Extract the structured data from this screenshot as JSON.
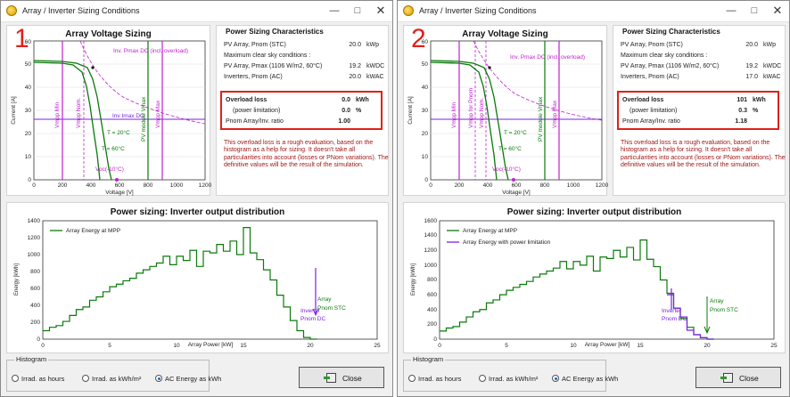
{
  "windows": [
    {
      "title": "Array / Inverter Sizing Conditions",
      "number": "1",
      "voltage_chart": {
        "title": "Array Voltage Sizing",
        "ylabel": "Current [A]",
        "xlabel": "Voltage [V]",
        "yticks": [
          "0",
          "10",
          "20",
          "30",
          "40",
          "50",
          "60"
        ],
        "xticks": [
          "0",
          "200",
          "400",
          "600",
          "800",
          "1000",
          "1200"
        ],
        "labels": {
          "pmax": "Inv. Pmax DC (incl. overload)",
          "imax": "Inv Imax DC",
          "t20": "T = 20°C",
          "t60": "T = 60°C",
          "voc": "Voc(-10°C)",
          "vmpp_min": "Vmpp Min",
          "vmpp_nom": "Vmpp Nom.",
          "module_vmax": "PV module Vmax",
          "vmpp_max": "Vmpp Max"
        }
      },
      "characteristics": {
        "title": "Power Sizing Characteristics",
        "rows": [
          {
            "label": "PV Array, Pnom (STC)",
            "value": "20.0",
            "unit": "kWp"
          },
          {
            "label": "Maximum clear sky conditions :",
            "value": "",
            "unit": ""
          },
          {
            "label": "PV Array, Pmax (1106 W/m2, 60°C)",
            "value": "19.2",
            "unit": "kWDC"
          },
          {
            "label": "Inverters, Pnom (AC)",
            "value": "20.0",
            "unit": "kWAC"
          }
        ],
        "overload": [
          {
            "label": "Overload loss",
            "value": "0.0",
            "unit": "kWh",
            "bold": true
          },
          {
            "label": "(power limitation)",
            "value": "0.0",
            "unit": "%",
            "bold": false
          },
          {
            "label": "Pnom Array/Inv. ratio",
            "value": "1.00",
            "unit": "",
            "bold": false
          }
        ],
        "note": "This overload loss is a rough evaluation, based on the histogram as a help for sizing. It doesn't take all particularities into account (losses or PNom variations). The definitive values will be the result of the simulation."
      },
      "distribution_chart": {
        "title": "Power sizing: Inverter output distribution",
        "ylabel": "Energy [kWh]",
        "xlabel": "Array Power [kW]",
        "yticks": [
          "0",
          "200",
          "400",
          "600",
          "800",
          "1000",
          "1200",
          "1400"
        ],
        "xticks": [
          "0",
          "5",
          "10",
          "15",
          "20",
          "25"
        ],
        "legend": [
          "Array Energy at MPP"
        ],
        "annotations": [
          "Array",
          "Pnom STC",
          "Inverter",
          "Pnom DC"
        ]
      },
      "histogram": {
        "title": "Histogram",
        "options": [
          "Irrad. as hours",
          "Irrad. as kWh/m²",
          "AC Energy as kWh"
        ],
        "selected": 2
      },
      "close_label": "Close"
    },
    {
      "title": "Array / Inverter Sizing Conditions",
      "number": "2",
      "voltage_chart": {
        "title": "Array Voltage Sizing",
        "ylabel": "Current [A]",
        "xlabel": "Voltage [V]",
        "yticks": [
          "0",
          "10",
          "20",
          "30",
          "40",
          "50",
          "60"
        ],
        "xticks": [
          "0",
          "200",
          "400",
          "600",
          "800",
          "1000",
          "1200"
        ],
        "labels": {
          "pmax": "Inv. Pmax DC (incl. overload)",
          "imax": "",
          "t20": "T = 20°C",
          "t60": "T = 60°C",
          "voc": "Voc(-10°C)",
          "vmpp_min": "Vmpp Min",
          "vmpp_nom": "Vmpp for Pnom",
          "vmpp_nom2": "Vmpp Nom.",
          "module_vmax": "PV module Vmax",
          "vmpp_max": "Vmpp Max"
        }
      },
      "characteristics": {
        "title": "Power Sizing Characteristics",
        "rows": [
          {
            "label": "PV Array, Pnom (STC)",
            "value": "20.0",
            "unit": "kWp"
          },
          {
            "label": "Maximum clear sky conditions :",
            "value": "",
            "unit": ""
          },
          {
            "label": "PV Array, Pmax (1106 W/m2, 60°C)",
            "value": "19.2",
            "unit": "kWDC"
          },
          {
            "label": "Inverters, Pnom (AC)",
            "value": "17.0",
            "unit": "kWAC"
          }
        ],
        "overload": [
          {
            "label": "Overload loss",
            "value": "101",
            "unit": "kWh",
            "bold": true
          },
          {
            "label": "(power limitation)",
            "value": "0.3",
            "unit": "%",
            "bold": false
          },
          {
            "label": "Pnom Array/Inv. ratio",
            "value": "1.18",
            "unit": "",
            "bold": false
          }
        ],
        "note": "This overload loss is a rough evaluation, based on the histogram as a help for sizing. It doesn't take all particularities into account (losses or PNom variations). The definitive values will be the result of the simulation."
      },
      "distribution_chart": {
        "title": "Power sizing: Inverter output distribution",
        "ylabel": "Energy [kWh]",
        "xlabel": "Array Power [kW]",
        "yticks": [
          "0",
          "200",
          "400",
          "600",
          "800",
          "1000",
          "1200",
          "1400",
          "1600"
        ],
        "xticks": [
          "0",
          "5",
          "10",
          "15",
          "20",
          "25"
        ],
        "legend": [
          "Array Energy at MPP",
          "Array Energy with power limitation"
        ],
        "annotations": [
          "Array",
          "Pnom STC",
          "Inverter",
          "Pnom DC"
        ]
      },
      "histogram": {
        "title": "Histogram",
        "options": [
          "Irrad. as hours",
          "Irrad. as kWh/m²",
          "AC Energy as kWh"
        ],
        "selected": 2
      },
      "close_label": "Close"
    }
  ],
  "colors": {
    "green": "#0a7a0a",
    "purple": "#c020d0",
    "violet": "#7a22e0",
    "red": "#e0201b",
    "brown": "#a01818"
  },
  "chart_data": [
    {
      "type": "line",
      "title": "Array Voltage Sizing",
      "xlabel": "Voltage [V]",
      "ylabel": "Current [A]",
      "xlim": [
        0,
        1200
      ],
      "ylim": [
        0,
        60
      ],
      "series": [
        {
          "name": "T = 20°C",
          "x": [
            0,
            200,
            300,
            380,
            440,
            470,
            500,
            530,
            550,
            570,
            585
          ],
          "y": [
            53,
            52.5,
            51.5,
            49,
            43,
            36,
            26,
            16,
            9,
            3,
            0
          ]
        },
        {
          "name": "T = 60°C",
          "x": [
            0,
            200,
            300,
            350,
            390,
            420,
            445,
            465,
            480,
            495
          ],
          "y": [
            52.5,
            52,
            50.5,
            47,
            40,
            31,
            20,
            10,
            4,
            0
          ]
        }
      ],
      "vlines": {
        "Vmpp Min": 200,
        "Vmpp Nom.": 350,
        "PV module Vmax": 1000,
        "Vmpp Max": 1100,
        "Voc(-10°C)": 580
      },
      "hlines": {
        "Inv Imax DC": 26
      }
    },
    {
      "type": "line",
      "title": "Power sizing: Inverter output distribution",
      "xlabel": "Array Power [kW]",
      "ylabel": "Energy [kWh]",
      "xlim": [
        0,
        25
      ],
      "ylim": [
        0,
        1400
      ],
      "series": [
        {
          "name": "Array Energy at MPP",
          "x": [
            0,
            0.5,
            1,
            1.5,
            2,
            2.5,
            3,
            3.5,
            4,
            4.5,
            5,
            5.5,
            6,
            6.5,
            7,
            7.5,
            8,
            8.5,
            9,
            9.5,
            10,
            10.5,
            11,
            11.5,
            12,
            12.5,
            13,
            13.5,
            14,
            14.5,
            15,
            15.5,
            16,
            16.5,
            17,
            17.5,
            18,
            18.5,
            19,
            19.5,
            20
          ],
          "y": [
            100,
            140,
            160,
            210,
            280,
            350,
            380,
            460,
            500,
            560,
            620,
            650,
            690,
            720,
            780,
            820,
            860,
            900,
            980,
            880,
            980,
            930,
            1050,
            860,
            1040,
            1020,
            1120,
            1040,
            1160,
            1000,
            1320,
            1020,
            940,
            820,
            700,
            520,
            380,
            220,
            100,
            20,
            0
          ]
        }
      ],
      "markers": {
        "Array Pnom STC": 20,
        "Inverter Pnom DC": 20
      }
    },
    {
      "type": "line",
      "title": "Power sizing: Inverter output distribution",
      "xlabel": "Array Power [kW]",
      "ylabel": "Energy [kWh]",
      "xlim": [
        0,
        25
      ],
      "ylim": [
        0,
        1600
      ],
      "series": [
        {
          "name": "Array Energy at MPP",
          "x": [
            0,
            0.5,
            1,
            1.5,
            2,
            2.5,
            3,
            3.5,
            4,
            4.5,
            5,
            5.5,
            6,
            6.5,
            7,
            7.5,
            8,
            8.5,
            9,
            9.5,
            10,
            10.5,
            11,
            11.5,
            12,
            12.5,
            13,
            13.5,
            14,
            14.5,
            15,
            15.5,
            16,
            16.5,
            17,
            17.5,
            18,
            18.5,
            19,
            19.5,
            20
          ],
          "y": [
            110,
            150,
            170,
            230,
            300,
            370,
            400,
            490,
            530,
            600,
            660,
            700,
            740,
            780,
            840,
            880,
            920,
            960,
            1050,
            950,
            1050,
            1000,
            1120,
            920,
            1110,
            1090,
            1200,
            1110,
            1240,
            1070,
            1340,
            1080,
            980,
            800,
            620,
            420,
            280,
            160,
            60,
            20,
            0
          ]
        },
        {
          "name": "Array Energy with power limitation",
          "x": [
            17,
            17.5,
            18,
            18.5,
            19,
            19.5,
            20
          ],
          "y": [
            600,
            420,
            300,
            120,
            60,
            20,
            0
          ]
        }
      ],
      "markers": {
        "Array Pnom STC": 20,
        "Inverter Pnom DC": 17
      }
    }
  ]
}
